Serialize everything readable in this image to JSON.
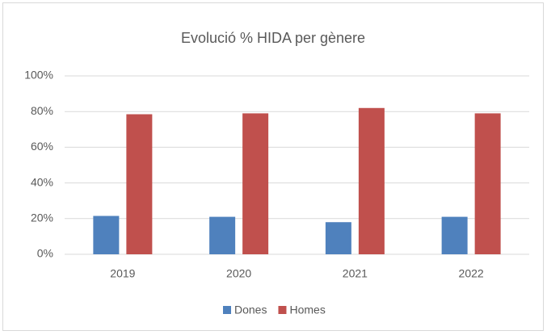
{
  "chart_data": {
    "type": "bar",
    "title": "Evolució % HIDA per gènere",
    "categories": [
      "2019",
      "2020",
      "2021",
      "2022"
    ],
    "series": [
      {
        "name": "Dones",
        "color": "#4f81bd",
        "values": [
          21.5,
          21,
          18,
          21
        ]
      },
      {
        "name": "Homes",
        "color": "#c0504d",
        "values": [
          78.5,
          79,
          82,
          79
        ]
      }
    ],
    "ylim": [
      0,
      100
    ],
    "yticks": [
      {
        "value": 0,
        "label": "0%"
      },
      {
        "value": 20,
        "label": "20%"
      },
      {
        "value": 40,
        "label": "40%"
      },
      {
        "value": 60,
        "label": "60%"
      },
      {
        "value": 80,
        "label": "80%"
      },
      {
        "value": 100,
        "label": "100%"
      }
    ],
    "grid": true,
    "legend": "bottom"
  }
}
